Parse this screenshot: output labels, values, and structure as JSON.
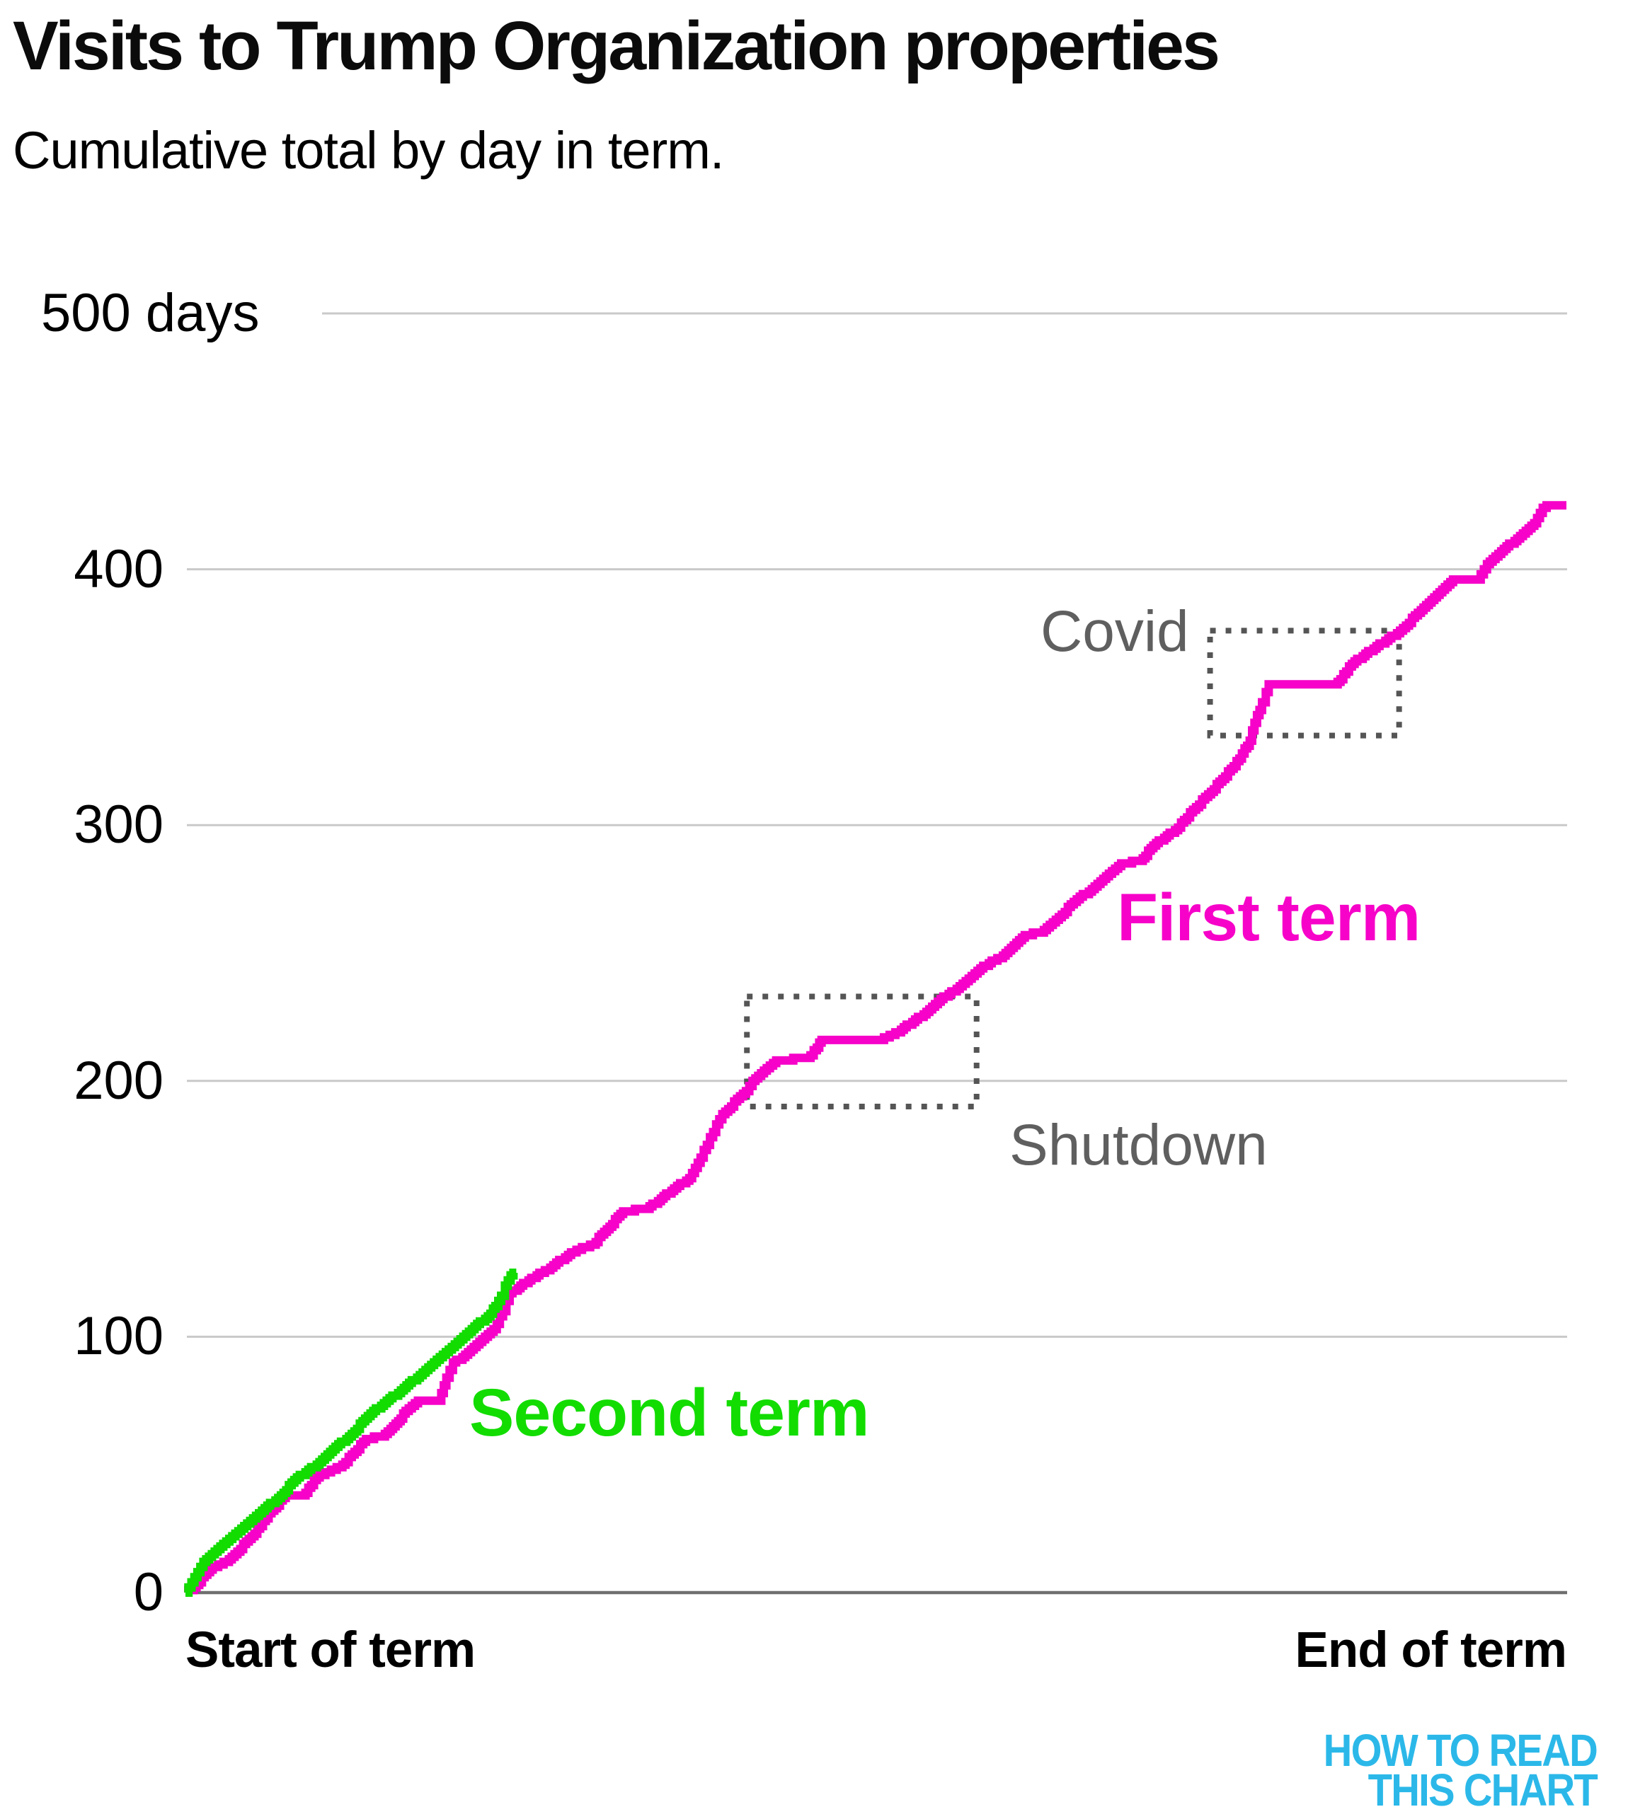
{
  "header": {
    "title": "Visits to Trump Organization properties",
    "subtitle": "Cumulative total by day in term."
  },
  "logo": {
    "line1": "HOW TO READ",
    "line2": "THIS CHART",
    "color": "#2bb8e9"
  },
  "colors": {
    "first_term": "#f602c9",
    "second_term": "#12dc00",
    "gridline": "#c9c9c9",
    "axis_line": "#6f6f6f",
    "annotation": "#5f5f5f",
    "annotation_box": "#555555"
  },
  "chart_data": {
    "type": "line",
    "title": "Visits to Trump Organization properties",
    "subtitle": "Cumulative total by day in term.",
    "xlabel_start": "Start of term",
    "xlabel_end": "End of term",
    "x_unit": "day in term",
    "x_range_days": [
      0,
      1461
    ],
    "y_unit": "cumulative visits (days)",
    "ylim": [
      0,
      500
    ],
    "grid": "horizontal",
    "legend_position": "labels-on-chart",
    "y_ticks": [
      {
        "value": 500,
        "label": "500 days"
      },
      {
        "value": 400,
        "label": "400"
      },
      {
        "value": 300,
        "label": "300"
      },
      {
        "value": 200,
        "label": "200"
      },
      {
        "value": 100,
        "label": "100"
      },
      {
        "value": 0,
        "label": "0"
      }
    ],
    "annotation_boxes": [
      {
        "name": "shutdown",
        "label": "Shutdown",
        "x_days": [
          594,
          837
        ],
        "y_values": [
          190,
          233
        ]
      },
      {
        "name": "covid",
        "label": "Covid",
        "x_days": [
          1084,
          1284
        ],
        "y_values": [
          335,
          376
        ]
      }
    ],
    "series": [
      {
        "name": "First term",
        "color": "#f602c9",
        "points": [
          [
            0,
            0
          ],
          [
            6,
            1
          ],
          [
            26,
            9
          ],
          [
            46,
            13
          ],
          [
            73,
            23
          ],
          [
            91,
            32
          ],
          [
            106,
            38
          ],
          [
            124,
            38
          ],
          [
            139,
            45
          ],
          [
            151,
            47
          ],
          [
            166,
            50
          ],
          [
            176,
            54
          ],
          [
            191,
            60
          ],
          [
            208,
            61
          ],
          [
            217,
            64
          ],
          [
            225,
            67
          ],
          [
            233,
            71
          ],
          [
            246,
            75
          ],
          [
            268,
            75
          ],
          [
            276,
            84
          ],
          [
            283,
            90
          ],
          [
            293,
            92
          ],
          [
            311,
            98
          ],
          [
            326,
            103
          ],
          [
            336,
            110
          ],
          [
            343,
            117
          ],
          [
            363,
            122
          ],
          [
            386,
            127
          ],
          [
            408,
            133
          ],
          [
            431,
            136
          ],
          [
            443,
            141
          ],
          [
            463,
            149
          ],
          [
            488,
            150
          ],
          [
            503,
            154
          ],
          [
            517,
            158
          ],
          [
            533,
            162
          ],
          [
            545,
            170
          ],
          [
            555,
            178
          ],
          [
            568,
            187
          ],
          [
            593,
            196
          ],
          [
            600,
            200
          ],
          [
            615,
            205
          ],
          [
            625,
            208
          ],
          [
            658,
            209
          ],
          [
            668,
            213
          ],
          [
            673,
            216
          ],
          [
            736,
            216
          ],
          [
            757,
            220
          ],
          [
            781,
            226
          ],
          [
            799,
            232
          ],
          [
            816,
            236
          ],
          [
            835,
            242
          ],
          [
            853,
            247
          ],
          [
            862,
            248
          ],
          [
            882,
            255
          ],
          [
            888,
            257
          ],
          [
            905,
            258
          ],
          [
            924,
            264
          ],
          [
            943,
            271
          ],
          [
            959,
            275
          ],
          [
            977,
            281
          ],
          [
            990,
            285
          ],
          [
            1010,
            286
          ],
          [
            1024,
            292
          ],
          [
            1047,
            298
          ],
          [
            1066,
            306
          ],
          [
            1082,
            312
          ],
          [
            1097,
            318
          ],
          [
            1115,
            326
          ],
          [
            1126,
            333
          ],
          [
            1131,
            340
          ],
          [
            1139,
            348
          ],
          [
            1143,
            352
          ],
          [
            1146,
            355
          ],
          [
            1216,
            355
          ],
          [
            1222,
            357
          ],
          [
            1234,
            363
          ],
          [
            1257,
            369
          ],
          [
            1285,
            376
          ],
          [
            1307,
            384
          ],
          [
            1324,
            390
          ],
          [
            1341,
            396
          ],
          [
            1367,
            396
          ],
          [
            1377,
            402
          ],
          [
            1392,
            407
          ],
          [
            1409,
            412
          ],
          [
            1427,
            418
          ],
          [
            1436,
            424
          ],
          [
            1440,
            425
          ],
          [
            1461,
            425
          ]
        ]
      },
      {
        "name": "Second term",
        "color": "#12dc00",
        "points": [
          [
            0,
            0
          ],
          [
            19,
            12
          ],
          [
            40,
            19
          ],
          [
            56,
            24
          ],
          [
            81,
            32
          ],
          [
            101,
            38
          ],
          [
            118,
            45
          ],
          [
            139,
            50
          ],
          [
            156,
            56
          ],
          [
            176,
            62
          ],
          [
            193,
            69
          ],
          [
            210,
            74
          ],
          [
            231,
            80
          ],
          [
            248,
            85
          ],
          [
            266,
            91
          ],
          [
            285,
            97
          ],
          [
            303,
            103
          ],
          [
            320,
            108
          ],
          [
            328,
            112
          ],
          [
            334,
            116
          ],
          [
            338,
            120
          ],
          [
            344,
            124
          ],
          [
            350,
            125
          ]
        ]
      }
    ]
  },
  "labels": {
    "first_term": "First term",
    "second_term": "Second term",
    "covid": "Covid",
    "shutdown": "Shutdown",
    "x_start": "Start of term",
    "x_end": "End of term"
  }
}
